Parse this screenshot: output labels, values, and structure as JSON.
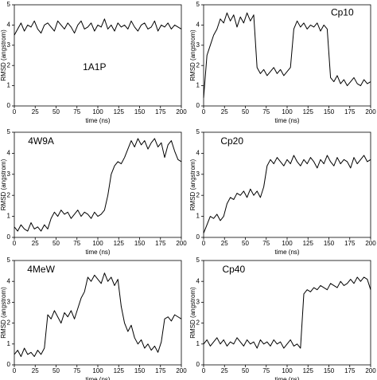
{
  "chart_data": [
    {
      "type": "line",
      "annotation": "1A1P",
      "xlabel": "time (ns)",
      "ylabel": "RMSD (angstrom)",
      "color": "#000000",
      "xlim": [
        0,
        200
      ],
      "ylim": [
        0,
        5
      ],
      "xticks": [
        0,
        25,
        50,
        75,
        100,
        125,
        150,
        175,
        200
      ],
      "yticks": [
        0,
        1,
        2,
        3,
        4,
        5
      ],
      "x": [
        0,
        4,
        8,
        12,
        16,
        20,
        24,
        28,
        32,
        36,
        40,
        44,
        48,
        52,
        56,
        60,
        64,
        68,
        72,
        76,
        80,
        84,
        88,
        92,
        96,
        100,
        104,
        108,
        112,
        116,
        120,
        124,
        128,
        132,
        136,
        140,
        144,
        148,
        152,
        156,
        160,
        164,
        168,
        172,
        176,
        180,
        184,
        188,
        192,
        196,
        200
      ],
      "values": [
        3.5,
        3.8,
        4.1,
        3.7,
        4.0,
        3.9,
        4.2,
        3.8,
        3.6,
        4.0,
        4.1,
        3.9,
        3.7,
        4.2,
        4.0,
        3.8,
        4.1,
        3.9,
        3.6,
        4.0,
        4.2,
        3.8,
        3.9,
        4.1,
        3.7,
        4.0,
        3.9,
        4.3,
        3.8,
        4.0,
        3.7,
        4.1,
        3.9,
        4.0,
        3.8,
        4.2,
        3.9,
        3.7,
        4.0,
        4.1,
        3.8,
        3.9,
        4.2,
        3.7,
        4.0,
        3.9,
        4.1,
        3.8,
        4.0,
        3.9,
        3.8
      ]
    },
    {
      "type": "line",
      "annotation": "Cp10",
      "xlabel": "time (ns)",
      "ylabel": "RMSD (angstrom)",
      "color": "#000000",
      "xlim": [
        0,
        200
      ],
      "ylim": [
        0,
        5
      ],
      "xticks": [
        0,
        25,
        50,
        75,
        100,
        125,
        150,
        175,
        200
      ],
      "yticks": [
        0,
        1,
        2,
        3,
        4,
        5
      ],
      "x": [
        0,
        4,
        8,
        12,
        16,
        20,
        24,
        28,
        32,
        36,
        40,
        44,
        48,
        52,
        56,
        60,
        64,
        68,
        72,
        76,
        80,
        84,
        88,
        92,
        96,
        100,
        104,
        108,
        112,
        116,
        120,
        124,
        128,
        132,
        136,
        140,
        144,
        148,
        152,
        156,
        160,
        164,
        168,
        172,
        176,
        180,
        184,
        188,
        192,
        196,
        200
      ],
      "values": [
        0.4,
        2.5,
        3.0,
        3.5,
        3.8,
        4.3,
        4.1,
        4.6,
        4.2,
        4.5,
        3.9,
        4.4,
        4.1,
        4.6,
        4.2,
        4.5,
        1.9,
        1.6,
        1.8,
        1.5,
        1.7,
        1.9,
        1.6,
        1.8,
        1.5,
        1.7,
        1.9,
        3.8,
        4.2,
        3.9,
        4.1,
        3.8,
        4.0,
        3.9,
        4.1,
        3.7,
        4.0,
        3.8,
        1.4,
        1.2,
        1.5,
        1.1,
        1.3,
        1.0,
        1.2,
        1.4,
        1.1,
        1.0,
        1.3,
        1.1,
        1.2
      ]
    },
    {
      "type": "line",
      "annotation": "4W9A",
      "xlabel": "time (ns)",
      "ylabel": "RMSD (angstrom)",
      "color": "#000000",
      "xlim": [
        0,
        200
      ],
      "ylim": [
        0,
        5
      ],
      "xticks": [
        0,
        25,
        50,
        75,
        100,
        125,
        150,
        175,
        200
      ],
      "yticks": [
        0,
        1,
        2,
        3,
        4,
        5
      ],
      "x": [
        0,
        4,
        8,
        12,
        16,
        20,
        24,
        28,
        32,
        36,
        40,
        44,
        48,
        52,
        56,
        60,
        64,
        68,
        72,
        76,
        80,
        84,
        88,
        92,
        96,
        100,
        104,
        108,
        112,
        116,
        120,
        124,
        128,
        132,
        136,
        140,
        144,
        148,
        152,
        156,
        160,
        164,
        168,
        172,
        176,
        180,
        184,
        188,
        192,
        196,
        200
      ],
      "values": [
        0.5,
        0.3,
        0.6,
        0.4,
        0.3,
        0.7,
        0.4,
        0.5,
        0.3,
        0.6,
        0.4,
        0.9,
        1.2,
        1.0,
        1.3,
        1.1,
        1.2,
        0.9,
        1.1,
        1.3,
        1.0,
        1.2,
        1.1,
        0.9,
        1.2,
        1.0,
        1.1,
        1.3,
        2.0,
        3.0,
        3.4,
        3.6,
        3.5,
        3.8,
        4.2,
        4.6,
        4.3,
        4.7,
        4.4,
        4.6,
        4.2,
        4.5,
        4.7,
        4.3,
        4.5,
        3.8,
        4.4,
        4.6,
        4.1,
        3.7,
        3.6
      ]
    },
    {
      "type": "line",
      "annotation": "Cp20",
      "xlabel": "time (ns)",
      "ylabel": "RMSD (angstrom)",
      "color": "#000000",
      "xlim": [
        0,
        200
      ],
      "ylim": [
        0,
        5
      ],
      "xticks": [
        0,
        25,
        50,
        75,
        100,
        125,
        150,
        175,
        200
      ],
      "yticks": [
        0,
        1,
        2,
        3,
        4,
        5
      ],
      "x": [
        0,
        4,
        8,
        12,
        16,
        20,
        24,
        28,
        32,
        36,
        40,
        44,
        48,
        52,
        56,
        60,
        64,
        68,
        72,
        76,
        80,
        84,
        88,
        92,
        96,
        100,
        104,
        108,
        112,
        116,
        120,
        124,
        128,
        132,
        136,
        140,
        144,
        148,
        152,
        156,
        160,
        164,
        168,
        172,
        176,
        180,
        184,
        188,
        192,
        196,
        200
      ],
      "values": [
        0.2,
        0.6,
        1.0,
        0.9,
        1.1,
        0.8,
        1.0,
        1.6,
        1.9,
        1.8,
        2.1,
        2.0,
        2.2,
        1.9,
        2.3,
        2.0,
        2.2,
        1.9,
        2.4,
        3.4,
        3.7,
        3.5,
        3.8,
        3.6,
        3.4,
        3.7,
        3.5,
        3.9,
        3.6,
        3.4,
        3.7,
        3.5,
        3.8,
        3.6,
        3.3,
        3.7,
        3.5,
        3.9,
        3.6,
        3.4,
        3.8,
        3.5,
        3.7,
        3.6,
        3.3,
        3.8,
        3.5,
        3.7,
        3.9,
        3.6,
        3.7
      ]
    },
    {
      "type": "line",
      "annotation": "4MeW",
      "xlabel": "time (ns)",
      "ylabel": "RMSD (angstrom)",
      "color": "#000000",
      "xlim": [
        0,
        200
      ],
      "ylim": [
        0,
        5
      ],
      "xticks": [
        0,
        25,
        50,
        75,
        100,
        125,
        150,
        175,
        200
      ],
      "yticks": [
        0,
        1,
        2,
        3,
        4,
        5
      ],
      "x": [
        0,
        4,
        8,
        12,
        16,
        20,
        24,
        28,
        32,
        36,
        40,
        44,
        48,
        52,
        56,
        60,
        64,
        68,
        72,
        76,
        80,
        84,
        88,
        92,
        96,
        100,
        104,
        108,
        112,
        116,
        120,
        124,
        128,
        132,
        136,
        140,
        144,
        148,
        152,
        156,
        160,
        164,
        168,
        172,
        176,
        180,
        184,
        188,
        192,
        196,
        200
      ],
      "values": [
        0.5,
        0.7,
        0.4,
        0.8,
        0.5,
        0.6,
        0.4,
        0.7,
        0.5,
        0.8,
        2.4,
        2.2,
        2.6,
        2.3,
        2.0,
        2.5,
        2.3,
        2.6,
        2.2,
        2.7,
        3.2,
        3.5,
        4.2,
        4.0,
        4.3,
        4.1,
        3.9,
        4.4,
        4.0,
        4.2,
        3.8,
        4.1,
        2.8,
        2.0,
        1.6,
        1.9,
        1.3,
        1.0,
        1.2,
        0.8,
        1.0,
        0.7,
        0.9,
        0.6,
        1.1,
        2.2,
        2.3,
        2.1,
        2.4,
        2.3,
        2.2
      ]
    },
    {
      "type": "line",
      "annotation": "Cp40",
      "xlabel": "time (ns)",
      "ylabel": "RMSD (angstrom)",
      "color": "#000000",
      "xlim": [
        0,
        200
      ],
      "ylim": [
        0,
        5
      ],
      "xticks": [
        0,
        25,
        50,
        75,
        100,
        125,
        150,
        175,
        200
      ],
      "yticks": [
        0,
        1,
        2,
        3,
        4,
        5
      ],
      "x": [
        0,
        4,
        8,
        12,
        16,
        20,
        24,
        28,
        32,
        36,
        40,
        44,
        48,
        52,
        56,
        60,
        64,
        68,
        72,
        76,
        80,
        84,
        88,
        92,
        96,
        100,
        104,
        108,
        112,
        116,
        120,
        124,
        128,
        132,
        136,
        140,
        144,
        148,
        152,
        156,
        160,
        164,
        168,
        172,
        176,
        180,
        184,
        188,
        192,
        196,
        200
      ],
      "values": [
        1.0,
        1.2,
        0.9,
        1.1,
        1.3,
        1.0,
        1.2,
        0.9,
        1.1,
        1.0,
        1.3,
        1.1,
        0.9,
        1.2,
        1.0,
        1.1,
        0.8,
        1.2,
        1.0,
        1.1,
        0.9,
        1.2,
        1.0,
        1.1,
        0.8,
        1.0,
        1.2,
        0.9,
        1.0,
        0.8,
        3.4,
        3.6,
        3.5,
        3.7,
        3.6,
        3.8,
        3.7,
        3.6,
        3.9,
        3.8,
        3.7,
        4.0,
        3.8,
        3.9,
        4.1,
        3.9,
        4.2,
        4.0,
        4.2,
        4.1,
        3.6
      ]
    }
  ]
}
